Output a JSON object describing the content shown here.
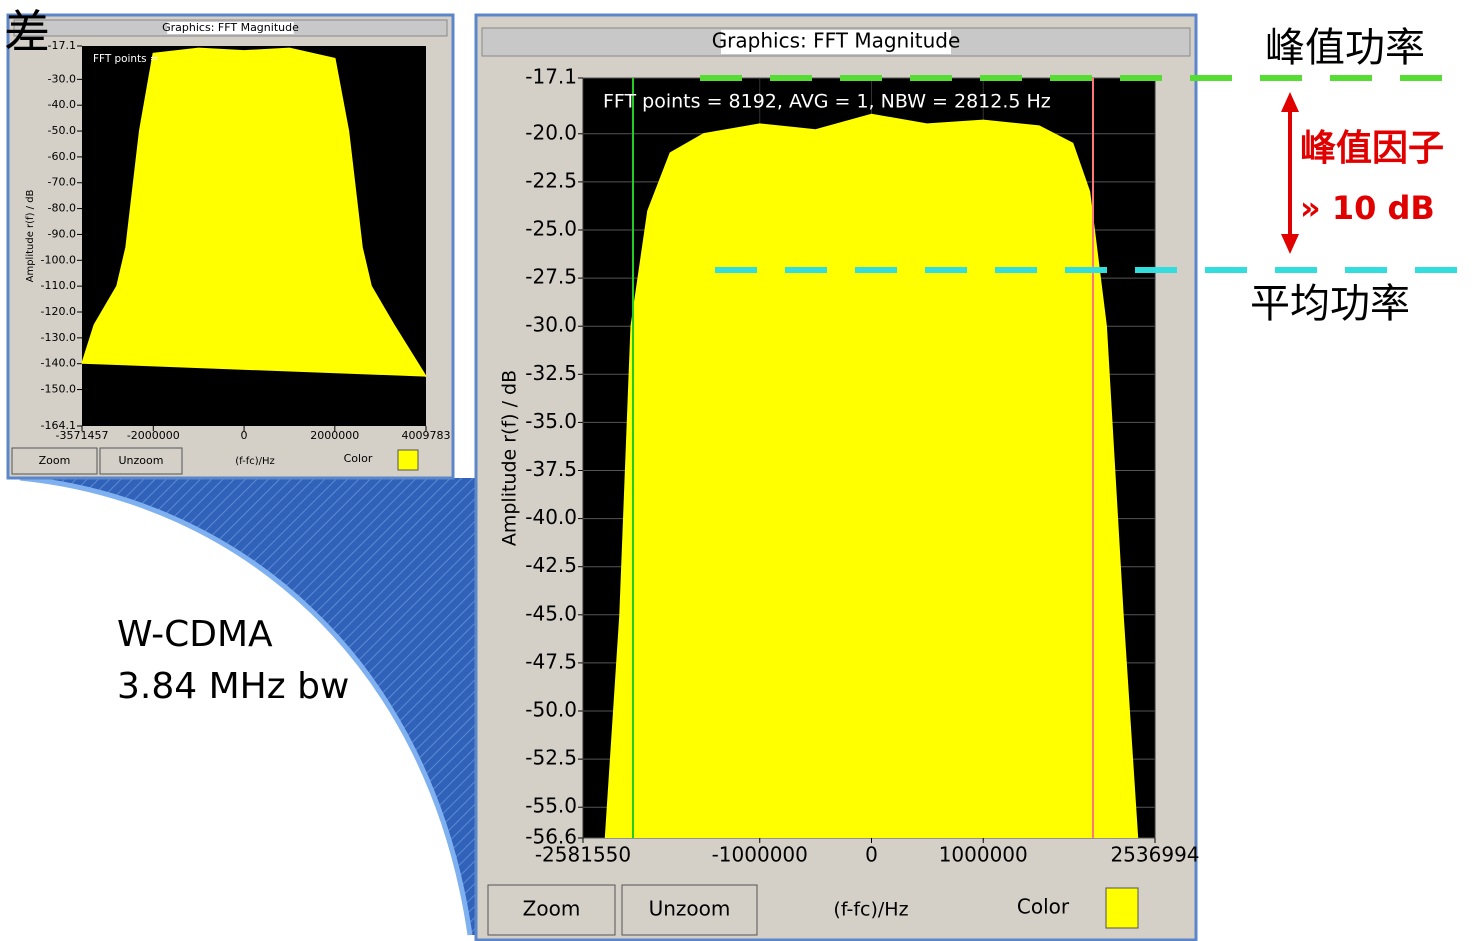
{
  "chart_data": [
    {
      "type": "area",
      "title": "Graphics: FFT Magnitude",
      "annotation": "FFT points =",
      "ylabel": "Amplitude r(f) / dB",
      "xlabel": "(f-fc)/Hz",
      "controls": [
        "Zoom",
        "Unzoom",
        "Color"
      ],
      "swatch_color": "#ffff00",
      "xlim": [
        -3571457,
        4009783
      ],
      "xticks": [
        -3571457,
        -2000000,
        0,
        2000000,
        4009783
      ],
      "ylim": [
        -164.1,
        -17.1
      ],
      "yticks": [
        -17.1,
        {
          "value": -30,
          "label": "-30.0"
        },
        {
          "value": -40,
          "label": "-40.0"
        },
        {
          "value": -50,
          "label": "-50.0"
        },
        {
          "value": -60,
          "label": "-60.0"
        },
        {
          "value": -70,
          "label": "-70.0"
        },
        {
          "value": -80,
          "label": "-80.0"
        },
        {
          "value": -90,
          "label": "-90.0"
        },
        {
          "value": -100,
          "label": "-100.0"
        },
        {
          "value": -110,
          "label": "-110.0"
        },
        {
          "value": -120,
          "label": "-120.0"
        },
        {
          "value": -130,
          "label": "-130.0"
        },
        {
          "value": -140,
          "label": "-140.0"
        },
        {
          "value": -150,
          "label": "-150.0"
        },
        -164.1
      ],
      "grid": false,
      "x": [
        -3571457,
        -3300000,
        -2800000,
        -2600000,
        -2300000,
        -2000000,
        -1000000,
        0,
        1000000,
        2000000,
        2300000,
        2600000,
        2800000,
        3300000,
        4009783
      ],
      "series": [
        {
          "color": "#ffff00",
          "values": [
            -140,
            -125,
            -110,
            -95,
            -50,
            -20,
            -18,
            -19,
            -18,
            -22,
            -50,
            -95,
            -110,
            -125,
            -145
          ]
        }
      ]
    },
    {
      "type": "area",
      "title": "Graphics: FFT Magnitude",
      "annotation": "FFT points = 8192, AVG = 1, NBW = 2812.5 Hz",
      "ylabel": "Amplitude r(f) / dB",
      "xlabel": "(f-fc)/Hz",
      "controls": [
        "Zoom",
        "Unzoom",
        "Color"
      ],
      "swatch_color": "#ffff00",
      "xlim": [
        -2581550,
        2536994
      ],
      "xticks": [
        -2581550,
        -1000000,
        0,
        1000000,
        2536994
      ],
      "ylim": [
        -56.6,
        -17.1
      ],
      "yticks": [
        -17.1,
        {
          "value": -20,
          "label": "-20.0"
        },
        -22.5,
        {
          "value": -25,
          "label": "-25.0"
        },
        -27.5,
        {
          "value": -30,
          "label": "-30.0"
        },
        -32.5,
        {
          "value": -35,
          "label": "-35.0"
        },
        -37.5,
        {
          "value": -40,
          "label": "-40.0"
        },
        -42.5,
        {
          "value": -45,
          "label": "-45.0"
        },
        -47.5,
        {
          "value": -50,
          "label": "-50.0"
        },
        -52.5,
        {
          "value": -55,
          "label": "-55.0"
        },
        -56.6
      ],
      "grid": true,
      "x": [
        -2380000,
        -2250000,
        -2150000,
        -2000000,
        -1800000,
        -1500000,
        -1000000,
        -500000,
        0,
        500000,
        1000000,
        1500000,
        1800000,
        1950000,
        2100000,
        2250000,
        2380000
      ],
      "series": [
        {
          "color": "#ffff00",
          "values": [
            -56.6,
            -45,
            -30,
            -24,
            -21,
            -20,
            -19.5,
            -19.8,
            -19,
            -19.5,
            -19.3,
            -19.6,
            -20.5,
            -23,
            -30,
            -45,
            -56.6
          ]
        }
      ]
    }
  ],
  "annotations": {
    "corner": "差",
    "peak_power": "峰值功率",
    "crest_factor": "峰值因子",
    "crest_value": "» 10 dB",
    "average_power": "平均功率",
    "signal": "W-CDMA",
    "bandwidth": "3.84 MHz bw"
  }
}
